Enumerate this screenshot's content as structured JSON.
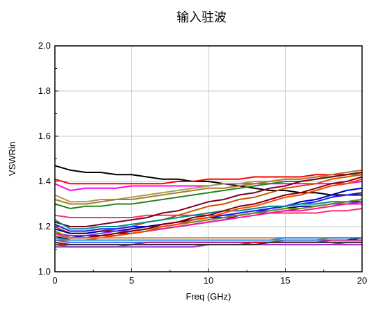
{
  "chart_data": {
    "type": "line",
    "title": "输入驻波",
    "xlabel": "Freq (GHz)",
    "ylabel": "VSWRin",
    "xlim": [
      0,
      20
    ],
    "ylim": [
      1.0,
      2.0
    ],
    "xticks": [
      0,
      5,
      10,
      15,
      20
    ],
    "xtick_labels": [
      "0",
      "5",
      "10",
      "15",
      "20"
    ],
    "yticks": [
      1.0,
      1.2,
      1.4,
      1.6,
      1.8,
      2.0
    ],
    "ytick_labels": [
      "1.0",
      "1.2",
      "1.4",
      "1.6",
      "1.8",
      "2.0"
    ],
    "grid": true,
    "legend": "none",
    "x": [
      0,
      1,
      2,
      3,
      4,
      5,
      6,
      7,
      8,
      9,
      10,
      11,
      12,
      13,
      14,
      15,
      16,
      17,
      18,
      19,
      20
    ],
    "series": [
      {
        "color": "#000000",
        "values": [
          1.47,
          1.45,
          1.44,
          1.44,
          1.43,
          1.43,
          1.42,
          1.41,
          1.41,
          1.4,
          1.4,
          1.39,
          1.38,
          1.37,
          1.36,
          1.36,
          1.35,
          1.35,
          1.34,
          1.34,
          1.34
        ]
      },
      {
        "color": "#ff0000",
        "values": [
          1.41,
          1.39,
          1.39,
          1.39,
          1.39,
          1.39,
          1.39,
          1.39,
          1.4,
          1.4,
          1.41,
          1.41,
          1.41,
          1.42,
          1.42,
          1.42,
          1.42,
          1.43,
          1.43,
          1.43,
          1.44
        ]
      },
      {
        "color": "#ff00ff",
        "values": [
          1.39,
          1.36,
          1.37,
          1.37,
          1.37,
          1.38,
          1.38,
          1.38,
          1.38,
          1.38,
          1.38,
          1.39,
          1.39,
          1.39,
          1.39,
          1.39,
          1.39,
          1.39,
          1.39,
          1.39,
          1.4
        ]
      },
      {
        "color": "#a0a050",
        "values": [
          1.34,
          1.31,
          1.31,
          1.32,
          1.32,
          1.33,
          1.34,
          1.35,
          1.36,
          1.37,
          1.38,
          1.39,
          1.39,
          1.4,
          1.4,
          1.41,
          1.41,
          1.42,
          1.42,
          1.43,
          1.43
        ]
      },
      {
        "color": "#b07830",
        "values": [
          1.32,
          1.3,
          1.3,
          1.31,
          1.32,
          1.32,
          1.33,
          1.34,
          1.35,
          1.36,
          1.37,
          1.37,
          1.38,
          1.39,
          1.4,
          1.41,
          1.41,
          1.42,
          1.43,
          1.44,
          1.45
        ]
      },
      {
        "color": "#228822",
        "values": [
          1.3,
          1.28,
          1.29,
          1.29,
          1.3,
          1.3,
          1.31,
          1.32,
          1.33,
          1.34,
          1.35,
          1.36,
          1.37,
          1.38,
          1.39,
          1.4,
          1.4,
          1.41,
          1.42,
          1.43,
          1.44
        ]
      },
      {
        "color": "#ff3366",
        "values": [
          1.25,
          1.24,
          1.24,
          1.24,
          1.24,
          1.24,
          1.25,
          1.25,
          1.25,
          1.25,
          1.25,
          1.25,
          1.25,
          1.26,
          1.26,
          1.26,
          1.26,
          1.26,
          1.27,
          1.27,
          1.28
        ]
      },
      {
        "color": "#800020",
        "values": [
          1.22,
          1.2,
          1.2,
          1.21,
          1.22,
          1.23,
          1.24,
          1.26,
          1.27,
          1.29,
          1.31,
          1.32,
          1.34,
          1.35,
          1.37,
          1.38,
          1.4,
          1.41,
          1.42,
          1.43,
          1.44
        ]
      },
      {
        "color": "#cc5500",
        "values": [
          1.2,
          1.17,
          1.17,
          1.18,
          1.19,
          1.2,
          1.22,
          1.23,
          1.25,
          1.27,
          1.29,
          1.3,
          1.32,
          1.33,
          1.35,
          1.37,
          1.38,
          1.39,
          1.41,
          1.42,
          1.43
        ]
      },
      {
        "color": "#0000cc",
        "values": [
          1.18,
          1.15,
          1.16,
          1.16,
          1.17,
          1.17,
          1.18,
          1.19,
          1.2,
          1.21,
          1.22,
          1.23,
          1.25,
          1.26,
          1.28,
          1.29,
          1.31,
          1.32,
          1.34,
          1.36,
          1.37
        ]
      },
      {
        "color": "#1a1aff",
        "values": [
          1.21,
          1.18,
          1.18,
          1.19,
          1.19,
          1.2,
          1.2,
          1.21,
          1.22,
          1.23,
          1.24,
          1.25,
          1.26,
          1.27,
          1.28,
          1.29,
          1.3,
          1.31,
          1.33,
          1.34,
          1.35
        ]
      },
      {
        "color": "#008b8b",
        "values": [
          1.23,
          1.19,
          1.19,
          1.2,
          1.2,
          1.21,
          1.22,
          1.23,
          1.24,
          1.25,
          1.26,
          1.27,
          1.27,
          1.28,
          1.29,
          1.29,
          1.3,
          1.3,
          1.31,
          1.31,
          1.32
        ]
      },
      {
        "color": "#00008b",
        "values": [
          1.19,
          1.17,
          1.17,
          1.18,
          1.18,
          1.19,
          1.2,
          1.21,
          1.22,
          1.23,
          1.24,
          1.24,
          1.25,
          1.26,
          1.27,
          1.28,
          1.29,
          1.29,
          1.3,
          1.31,
          1.31
        ]
      },
      {
        "color": "#8a2be2",
        "values": [
          1.17,
          1.16,
          1.16,
          1.17,
          1.18,
          1.18,
          1.19,
          1.2,
          1.21,
          1.22,
          1.23,
          1.24,
          1.25,
          1.26,
          1.26,
          1.27,
          1.28,
          1.29,
          1.3,
          1.3,
          1.31
        ]
      },
      {
        "color": "#6b8e23",
        "values": [
          1.18,
          1.15,
          1.15,
          1.16,
          1.17,
          1.18,
          1.19,
          1.2,
          1.21,
          1.22,
          1.23,
          1.24,
          1.25,
          1.26,
          1.27,
          1.28,
          1.28,
          1.29,
          1.3,
          1.31,
          1.32
        ]
      },
      {
        "color": "#ff1493",
        "values": [
          1.17,
          1.15,
          1.15,
          1.16,
          1.16,
          1.17,
          1.18,
          1.19,
          1.2,
          1.21,
          1.22,
          1.23,
          1.24,
          1.25,
          1.26,
          1.27,
          1.27,
          1.28,
          1.29,
          1.3,
          1.3
        ]
      },
      {
        "color": "#8b0000",
        "values": [
          1.15,
          1.15,
          1.15,
          1.16,
          1.17,
          1.18,
          1.19,
          1.21,
          1.22,
          1.24,
          1.25,
          1.27,
          1.29,
          1.3,
          1.32,
          1.34,
          1.35,
          1.37,
          1.39,
          1.4,
          1.42
        ]
      },
      {
        "color": "#ff4500",
        "values": [
          1.14,
          1.14,
          1.14,
          1.15,
          1.16,
          1.17,
          1.18,
          1.2,
          1.21,
          1.23,
          1.24,
          1.26,
          1.28,
          1.29,
          1.31,
          1.33,
          1.34,
          1.36,
          1.38,
          1.39,
          1.41
        ]
      },
      {
        "color": "#000000",
        "values": [
          1.16,
          1.14,
          1.14,
          1.14,
          1.14,
          1.14,
          1.14,
          1.14,
          1.14,
          1.14,
          1.14,
          1.14,
          1.14,
          1.14,
          1.14,
          1.14,
          1.14,
          1.14,
          1.14,
          1.14,
          1.15
        ]
      },
      {
        "color": "#b8860b",
        "values": [
          1.15,
          1.14,
          1.14,
          1.14,
          1.14,
          1.14,
          1.14,
          1.14,
          1.14,
          1.14,
          1.14,
          1.14,
          1.14,
          1.14,
          1.14,
          1.14,
          1.14,
          1.14,
          1.15,
          1.15,
          1.15
        ]
      },
      {
        "color": "#4169e1",
        "values": [
          1.14,
          1.13,
          1.13,
          1.13,
          1.13,
          1.13,
          1.13,
          1.13,
          1.13,
          1.13,
          1.13,
          1.13,
          1.13,
          1.13,
          1.13,
          1.14,
          1.14,
          1.14,
          1.14,
          1.14,
          1.14
        ]
      },
      {
        "color": "#c71585",
        "values": [
          1.13,
          1.12,
          1.12,
          1.12,
          1.12,
          1.12,
          1.13,
          1.13,
          1.13,
          1.13,
          1.13,
          1.13,
          1.13,
          1.13,
          1.13,
          1.13,
          1.13,
          1.13,
          1.14,
          1.14,
          1.14
        ]
      },
      {
        "color": "#ff0000",
        "values": [
          1.12,
          1.12,
          1.12,
          1.12,
          1.12,
          1.12,
          1.12,
          1.12,
          1.12,
          1.12,
          1.12,
          1.12,
          1.12,
          1.13,
          1.13,
          1.13,
          1.13,
          1.13,
          1.13,
          1.13,
          1.13
        ]
      },
      {
        "color": "#228b22",
        "values": [
          1.12,
          1.11,
          1.11,
          1.11,
          1.11,
          1.12,
          1.12,
          1.12,
          1.12,
          1.12,
          1.12,
          1.12,
          1.12,
          1.12,
          1.12,
          1.12,
          1.12,
          1.12,
          1.12,
          1.13,
          1.13
        ]
      },
      {
        "color": "#9932cc",
        "values": [
          1.11,
          1.11,
          1.11,
          1.11,
          1.11,
          1.11,
          1.11,
          1.11,
          1.11,
          1.11,
          1.12,
          1.12,
          1.12,
          1.12,
          1.12,
          1.12,
          1.12,
          1.12,
          1.12,
          1.12,
          1.12
        ]
      },
      {
        "color": "#333333",
        "values": [
          1.13,
          1.12,
          1.12,
          1.12,
          1.12,
          1.12,
          1.12,
          1.12,
          1.12,
          1.12,
          1.12,
          1.12,
          1.12,
          1.12,
          1.13,
          1.13,
          1.13,
          1.13,
          1.13,
          1.13,
          1.13
        ]
      },
      {
        "color": "#cd853f",
        "values": [
          1.16,
          1.15,
          1.15,
          1.15,
          1.15,
          1.15,
          1.15,
          1.15,
          1.15,
          1.15,
          1.15,
          1.15,
          1.15,
          1.15,
          1.15,
          1.15,
          1.15,
          1.15,
          1.15,
          1.15,
          1.15
        ]
      },
      {
        "color": "#1e90ff",
        "values": [
          1.15,
          1.14,
          1.14,
          1.14,
          1.14,
          1.14,
          1.14,
          1.14,
          1.14,
          1.14,
          1.14,
          1.14,
          1.14,
          1.14,
          1.14,
          1.15,
          1.15,
          1.15,
          1.15,
          1.15,
          1.15
        ]
      }
    ]
  }
}
